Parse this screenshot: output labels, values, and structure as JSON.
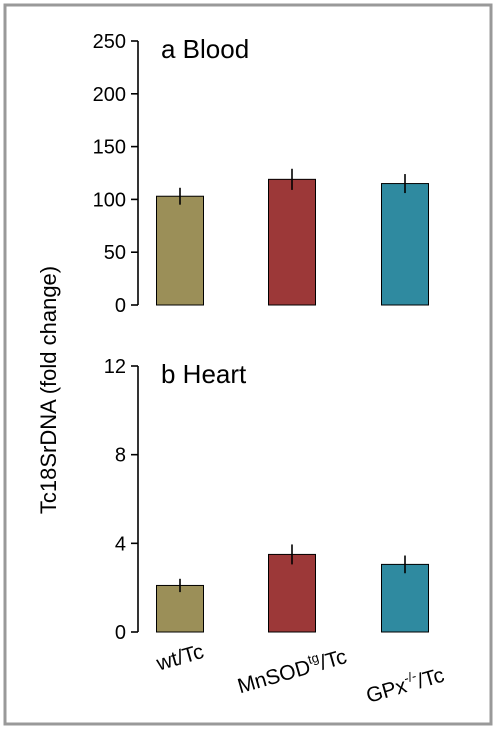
{
  "chart_data": {
    "type": "bar",
    "ylabel": "Tc18SrDNA (fold change)",
    "categories": [
      "wt/Tc",
      "MnSOD",
      "GPx"
    ],
    "category_labels": [
      {
        "base": "wt/Tc",
        "sup": "",
        "suffix": ""
      },
      {
        "base": "MnSOD",
        "sup": "tg",
        "suffix": "/Tc"
      },
      {
        "base": "GPx",
        "sup": "-/-",
        "suffix": "/Tc"
      }
    ],
    "colors": [
      "#9b8f58",
      "#9c3838",
      "#2f8aa0"
    ],
    "panels": [
      {
        "title": "a Blood",
        "ylim": [
          0,
          250
        ],
        "yticks": [
          0,
          50,
          100,
          150,
          200,
          250
        ],
        "values": [
          103,
          119,
          115
        ],
        "errors": [
          8,
          10,
          9
        ]
      },
      {
        "title": "b  Heart",
        "ylim": [
          0,
          12
        ],
        "yticks": [
          0,
          4,
          8,
          12
        ],
        "values": [
          2.1,
          3.5,
          3.05
        ],
        "errors": [
          0.3,
          0.45,
          0.4
        ]
      }
    ]
  }
}
